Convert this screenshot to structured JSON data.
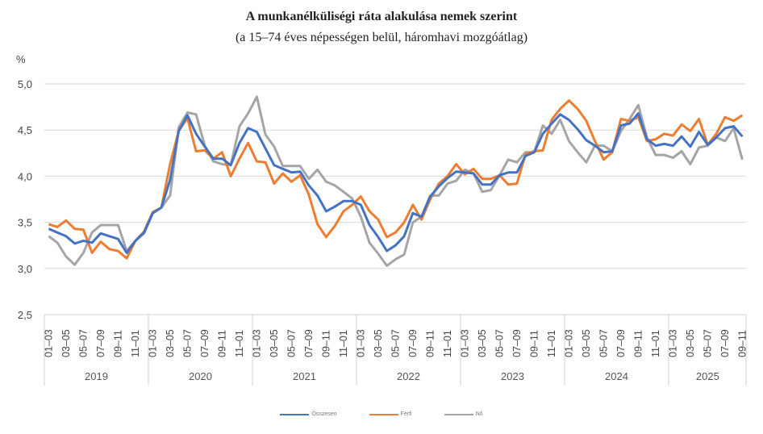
{
  "chart_data": {
    "type": "line",
    "title": "A munkanélküliségi  ráta alakulása nemek szerint",
    "subtitle": "(a 15–74 éves népességen belül, háromhavi mozgóátlag)",
    "ylabel": "%",
    "ylim": [
      2.5,
      5.0
    ],
    "yticks": [
      "2,5",
      "3,0",
      "3,5",
      "4,0",
      "4,5",
      "5,0"
    ],
    "ytick_values": [
      2.5,
      3.0,
      3.5,
      4.0,
      4.5,
      5.0
    ],
    "grid": true,
    "legend_position": "bottom",
    "years": [
      "2019",
      "2020",
      "2021",
      "2022",
      "2023",
      "2024",
      "2025"
    ],
    "period_labels": [
      "01–03",
      "03–05",
      "05–07",
      "07–09",
      "09–11",
      "11–01"
    ],
    "last_year_label_count": 5,
    "n_points": 81,
    "series": [
      {
        "name": "Összesen",
        "color": "#4472C4",
        "values": [
          3.43,
          3.39,
          3.35,
          3.27,
          3.3,
          3.28,
          3.38,
          3.35,
          3.32,
          3.17,
          3.3,
          3.39,
          3.6,
          3.66,
          3.96,
          4.49,
          4.66,
          4.46,
          4.32,
          4.19,
          4.19,
          4.12,
          4.36,
          4.52,
          4.48,
          4.3,
          4.12,
          4.08,
          4.04,
          4.05,
          3.9,
          3.79,
          3.62,
          3.67,
          3.73,
          3.73,
          3.69,
          3.47,
          3.34,
          3.19,
          3.25,
          3.35,
          3.6,
          3.56,
          3.78,
          3.89,
          3.98,
          4.05,
          4.04,
          4.03,
          3.91,
          3.91,
          4.01,
          4.04,
          4.04,
          4.22,
          4.26,
          4.46,
          4.57,
          4.67,
          4.61,
          4.51,
          4.39,
          4.33,
          4.26,
          4.27,
          4.55,
          4.57,
          4.68,
          4.4,
          4.33,
          4.35,
          4.33,
          4.43,
          4.32,
          4.48,
          4.34,
          4.42,
          4.52,
          4.54,
          4.43
        ]
      },
      {
        "name": "Férfi",
        "color": "#ED7D31",
        "values": [
          3.48,
          3.45,
          3.52,
          3.43,
          3.42,
          3.17,
          3.29,
          3.21,
          3.19,
          3.11,
          3.3,
          3.4,
          3.61,
          3.66,
          4.13,
          4.49,
          4.63,
          4.27,
          4.28,
          4.19,
          4.26,
          4.0,
          4.19,
          4.36,
          4.16,
          4.15,
          3.92,
          4.03,
          3.94,
          4.01,
          3.8,
          3.48,
          3.34,
          3.46,
          3.62,
          3.69,
          3.78,
          3.62,
          3.53,
          3.34,
          3.39,
          3.5,
          3.69,
          3.53,
          3.75,
          3.92,
          4.0,
          4.13,
          4.02,
          4.08,
          3.97,
          3.97,
          4.01,
          3.91,
          3.92,
          4.24,
          4.27,
          4.28,
          4.61,
          4.73,
          4.82,
          4.73,
          4.6,
          4.38,
          4.18,
          4.26,
          4.62,
          4.6,
          4.64,
          4.38,
          4.4,
          4.46,
          4.44,
          4.56,
          4.49,
          4.62,
          4.34,
          4.46,
          4.64,
          4.6,
          4.66
        ]
      },
      {
        "name": "Nő",
        "color": "#A5A5A5",
        "values": [
          3.35,
          3.28,
          3.13,
          3.04,
          3.17,
          3.39,
          3.47,
          3.47,
          3.47,
          3.19,
          3.3,
          3.38,
          3.6,
          3.66,
          3.79,
          4.53,
          4.69,
          4.67,
          4.33,
          4.16,
          4.13,
          4.12,
          4.54,
          4.68,
          4.86,
          4.45,
          4.32,
          4.11,
          4.11,
          4.11,
          3.97,
          4.07,
          3.94,
          3.9,
          3.83,
          3.76,
          3.56,
          3.28,
          3.16,
          3.03,
          3.1,
          3.15,
          3.5,
          3.56,
          3.79,
          3.79,
          3.92,
          3.95,
          4.07,
          4.03,
          3.83,
          3.85,
          4.01,
          4.18,
          4.15,
          4.26,
          4.26,
          4.55,
          4.46,
          4.61,
          4.38,
          4.26,
          4.15,
          4.33,
          4.33,
          4.27,
          4.49,
          4.62,
          4.77,
          4.42,
          4.23,
          4.23,
          4.2,
          4.27,
          4.13,
          4.31,
          4.33,
          4.42,
          4.38,
          4.52,
          4.18
        ]
      }
    ]
  }
}
